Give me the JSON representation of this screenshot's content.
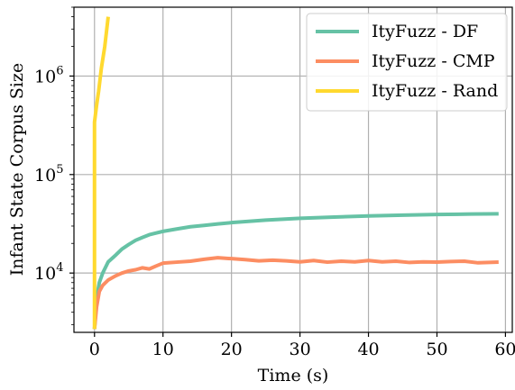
{
  "chart_data": {
    "type": "line",
    "title": "",
    "xlabel": "Time (s)",
    "ylabel": "Infant State Corpus Size",
    "xlim": [
      -3,
      61
    ],
    "ylim": [
      2500,
      5000000
    ],
    "yscale": "log",
    "grid": true,
    "legend_position": "top-right",
    "x_ticks": [
      0,
      10,
      20,
      30,
      40,
      50,
      60
    ],
    "y_ticks": [
      {
        "value": 10000,
        "base": "10",
        "exp": "4"
      },
      {
        "value": 100000,
        "base": "10",
        "exp": "5"
      },
      {
        "value": 1000000,
        "base": "10",
        "exp": "6"
      }
    ],
    "series": [
      {
        "name": "ItyFuzz - DF",
        "color": "#66c2a5",
        "points": [
          [
            0,
            2700
          ],
          [
            0.3,
            5500
          ],
          [
            0.7,
            8000
          ],
          [
            1.2,
            10000
          ],
          [
            2,
            13000
          ],
          [
            3,
            15000
          ],
          [
            4,
            17500
          ],
          [
            5,
            19500
          ],
          [
            6,
            21500
          ],
          [
            7,
            23000
          ],
          [
            8,
            24500
          ],
          [
            9,
            25500
          ],
          [
            10,
            26500
          ],
          [
            12,
            28000
          ],
          [
            14,
            29500
          ],
          [
            16,
            30500
          ],
          [
            18,
            31500
          ],
          [
            20,
            32500
          ],
          [
            25,
            34500
          ],
          [
            30,
            36000
          ],
          [
            35,
            37000
          ],
          [
            40,
            38000
          ],
          [
            45,
            38700
          ],
          [
            50,
            39300
          ],
          [
            55,
            39700
          ],
          [
            59,
            40000
          ]
        ]
      },
      {
        "name": "ItyFuzz - CMP",
        "color": "#fc8d62",
        "points": [
          [
            0,
            2700
          ],
          [
            0.3,
            4500
          ],
          [
            0.7,
            6500
          ],
          [
            1.2,
            7500
          ],
          [
            2,
            8500
          ],
          [
            3,
            9300
          ],
          [
            4,
            10000
          ],
          [
            5,
            10500
          ],
          [
            6,
            10800
          ],
          [
            7,
            11300
          ],
          [
            8,
            11000
          ],
          [
            9,
            11800
          ],
          [
            10,
            12600
          ],
          [
            12,
            12900
          ],
          [
            14,
            13200
          ],
          [
            16,
            13800
          ],
          [
            18,
            14300
          ],
          [
            20,
            14000
          ],
          [
            22,
            13700
          ],
          [
            24,
            13300
          ],
          [
            26,
            13500
          ],
          [
            28,
            13300
          ],
          [
            30,
            13000
          ],
          [
            32,
            13400
          ],
          [
            34,
            12900
          ],
          [
            36,
            13200
          ],
          [
            38,
            13000
          ],
          [
            40,
            13400
          ],
          [
            42,
            13000
          ],
          [
            44,
            13200
          ],
          [
            46,
            12800
          ],
          [
            48,
            13000
          ],
          [
            50,
            12900
          ],
          [
            52,
            13100
          ],
          [
            54,
            13200
          ],
          [
            56,
            12700
          ],
          [
            59,
            12900
          ]
        ]
      },
      {
        "name": "ItyFuzz - Rand",
        "color": "#ffd92f",
        "points": [
          [
            0,
            2700
          ],
          [
            0,
            340000
          ],
          [
            0.3,
            500000
          ],
          [
            0.6,
            700000
          ],
          [
            1,
            1200000
          ],
          [
            1.5,
            2000000
          ],
          [
            2,
            4000000
          ]
        ]
      }
    ]
  }
}
